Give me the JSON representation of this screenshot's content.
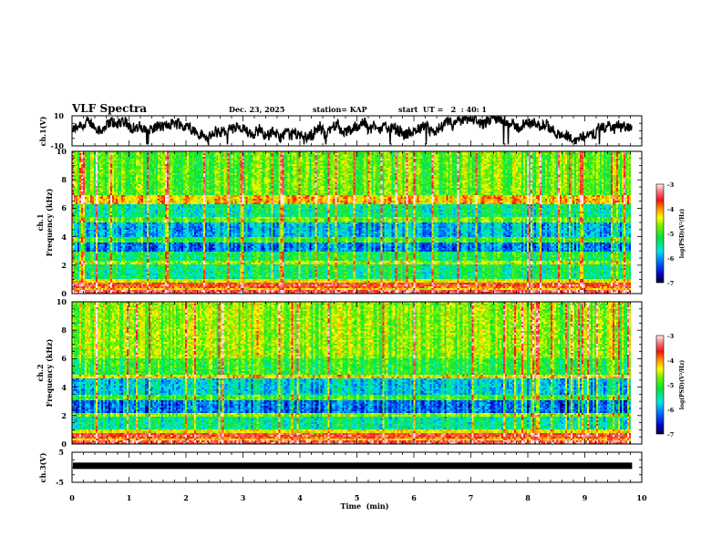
{
  "header": {
    "title": "VLF Spectra",
    "date": "Dec. 23, 2025",
    "station": "station= KAP",
    "start": "start  UT =   2  : 40: 1"
  },
  "chart_data": [
    {
      "type": "line",
      "panel": "ch1",
      "ylabel": "ch.1(V)",
      "ylim": [
        -10,
        10
      ],
      "yticks": [
        "10",
        "-10"
      ],
      "xlim": [
        0,
        10
      ],
      "data_end_min": 9.83,
      "description_values": "noisy waveform, mostly between -8 and 8 V"
    },
    {
      "type": "heatmap",
      "panel": "ch1-spectrogram",
      "ylabel_channel": "ch.1",
      "ylabel": "Frequency  (kHz)",
      "ylim": [
        0,
        10
      ],
      "yticks": [
        "0",
        "2",
        "4",
        "6",
        "8",
        "10"
      ],
      "xlim": [
        0,
        10
      ],
      "colorbar": {
        "label": "log(PSD)(V²/Hz)",
        "range": [
          -7,
          -3
        ],
        "ticks": [
          "-3",
          "-4",
          "-5",
          "-6",
          "-7"
        ]
      }
    },
    {
      "type": "heatmap",
      "panel": "ch2-spectrogram",
      "ylabel_channel": "ch.2",
      "ylabel": "Frequency  (kHz)",
      "ylim": [
        0,
        10
      ],
      "yticks": [
        "0",
        "2",
        "4",
        "6",
        "8",
        "10"
      ],
      "xlim": [
        0,
        10
      ],
      "colorbar": {
        "label": "log(PSD)(V²/Hz)",
        "range": [
          -7,
          -3
        ],
        "ticks": [
          "-3",
          "-4",
          "-5",
          "-6",
          "-7"
        ]
      }
    },
    {
      "type": "line",
      "panel": "ch3",
      "ylabel": "ch.3(V)",
      "ylim": [
        -5,
        5
      ],
      "yticks": [
        "5",
        "-5"
      ],
      "xlim": [
        0,
        10
      ],
      "data_end_min": 9.83,
      "level_v": 0.5
    }
  ],
  "xaxis": {
    "label": "Time  (min)",
    "ticks": [
      "0",
      "1",
      "2",
      "3",
      "4",
      "5",
      "6",
      "7",
      "8",
      "9",
      "10"
    ]
  }
}
